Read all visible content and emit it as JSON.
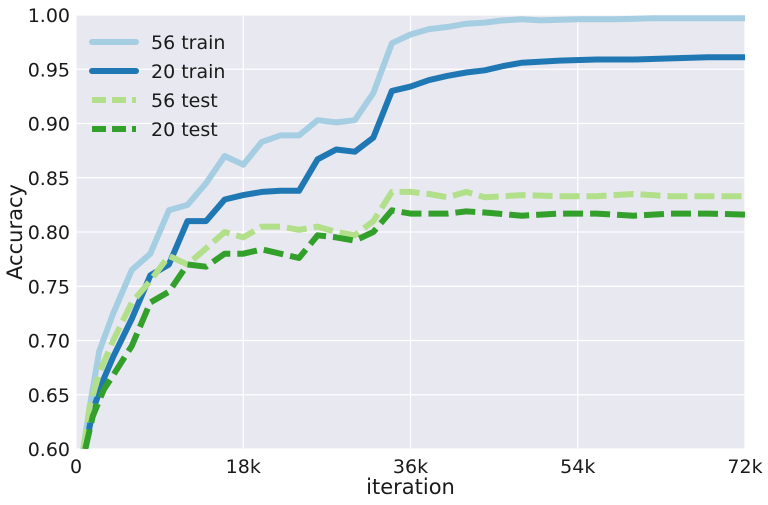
{
  "chart_data": {
    "type": "line",
    "title": "",
    "xlabel": "iteration",
    "ylabel": "Accuracy",
    "xlim": [
      0,
      72000
    ],
    "ylim": [
      0.6,
      1.0
    ],
    "grid": true,
    "legend_position": "top-left",
    "background": "#e8e8f0",
    "x_ticks": [
      {
        "value": 0,
        "label": "0"
      },
      {
        "value": 18000,
        "label": "18k"
      },
      {
        "value": 36000,
        "label": "36k"
      },
      {
        "value": 54000,
        "label": "54k"
      },
      {
        "value": 72000,
        "label": "72k"
      }
    ],
    "y_ticks": [
      {
        "value": 0.6,
        "label": "0.60"
      },
      {
        "value": 0.65,
        "label": "0.65"
      },
      {
        "value": 0.7,
        "label": "0.70"
      },
      {
        "value": 0.75,
        "label": "0.75"
      },
      {
        "value": 0.8,
        "label": "0.80"
      },
      {
        "value": 0.85,
        "label": "0.85"
      },
      {
        "value": 0.9,
        "label": "0.90"
      },
      {
        "value": 0.95,
        "label": "0.95"
      },
      {
        "value": 1.0,
        "label": "1.00"
      }
    ],
    "series": [
      {
        "name": "56 train",
        "color": "#a6cee3",
        "dash": "solid",
        "points": [
          [
            800,
            0.6
          ],
          [
            1500,
            0.64
          ],
          [
            2500,
            0.69
          ],
          [
            4000,
            0.725
          ],
          [
            6000,
            0.765
          ],
          [
            8000,
            0.78
          ],
          [
            10000,
            0.82
          ],
          [
            12000,
            0.825
          ],
          [
            14000,
            0.845
          ],
          [
            16000,
            0.87
          ],
          [
            18000,
            0.862
          ],
          [
            20000,
            0.883
          ],
          [
            22000,
            0.889
          ],
          [
            24000,
            0.889
          ],
          [
            26000,
            0.903
          ],
          [
            28000,
            0.901
          ],
          [
            30000,
            0.903
          ],
          [
            32000,
            0.928
          ],
          [
            34000,
            0.974
          ],
          [
            36000,
            0.982
          ],
          [
            38000,
            0.987
          ],
          [
            40000,
            0.989
          ],
          [
            42000,
            0.992
          ],
          [
            44000,
            0.993
          ],
          [
            46000,
            0.995
          ],
          [
            48000,
            0.996
          ],
          [
            50000,
            0.995
          ],
          [
            54000,
            0.996
          ],
          [
            58000,
            0.996
          ],
          [
            62000,
            0.997
          ],
          [
            66000,
            0.997
          ],
          [
            72000,
            0.997
          ]
        ]
      },
      {
        "name": "20 train",
        "color": "#1f78b4",
        "dash": "solid",
        "points": [
          [
            1000,
            0.6
          ],
          [
            1800,
            0.635
          ],
          [
            3000,
            0.665
          ],
          [
            4000,
            0.685
          ],
          [
            6000,
            0.72
          ],
          [
            8000,
            0.76
          ],
          [
            10000,
            0.77
          ],
          [
            12000,
            0.81
          ],
          [
            14000,
            0.81
          ],
          [
            16000,
            0.83
          ],
          [
            18000,
            0.834
          ],
          [
            20000,
            0.837
          ],
          [
            22000,
            0.838
          ],
          [
            24000,
            0.838
          ],
          [
            26000,
            0.867
          ],
          [
            28000,
            0.876
          ],
          [
            30000,
            0.874
          ],
          [
            32000,
            0.887
          ],
          [
            34000,
            0.93
          ],
          [
            36000,
            0.934
          ],
          [
            38000,
            0.94
          ],
          [
            40000,
            0.944
          ],
          [
            42000,
            0.947
          ],
          [
            44000,
            0.949
          ],
          [
            46000,
            0.953
          ],
          [
            48000,
            0.956
          ],
          [
            52000,
            0.958
          ],
          [
            56000,
            0.959
          ],
          [
            60000,
            0.959
          ],
          [
            64000,
            0.96
          ],
          [
            68000,
            0.961
          ],
          [
            72000,
            0.961
          ]
        ]
      },
      {
        "name": "56 test",
        "color": "#b2df8a",
        "dash": "dashed",
        "points": [
          [
            800,
            0.6
          ],
          [
            1500,
            0.64
          ],
          [
            2500,
            0.67
          ],
          [
            4000,
            0.7
          ],
          [
            6000,
            0.735
          ],
          [
            8000,
            0.755
          ],
          [
            10000,
            0.778
          ],
          [
            12000,
            0.77
          ],
          [
            14000,
            0.785
          ],
          [
            16000,
            0.8
          ],
          [
            18000,
            0.795
          ],
          [
            20000,
            0.805
          ],
          [
            22000,
            0.805
          ],
          [
            24000,
            0.802
          ],
          [
            26000,
            0.805
          ],
          [
            28000,
            0.8
          ],
          [
            30000,
            0.797
          ],
          [
            32000,
            0.81
          ],
          [
            34000,
            0.837
          ],
          [
            36000,
            0.837
          ],
          [
            38000,
            0.835
          ],
          [
            40000,
            0.832
          ],
          [
            42000,
            0.837
          ],
          [
            44000,
            0.832
          ],
          [
            48000,
            0.834
          ],
          [
            52000,
            0.833
          ],
          [
            56000,
            0.833
          ],
          [
            60000,
            0.835
          ],
          [
            64000,
            0.833
          ],
          [
            68000,
            0.833
          ],
          [
            72000,
            0.833
          ]
        ]
      },
      {
        "name": "20 test",
        "color": "#33a02c",
        "dash": "dashed",
        "points": [
          [
            1000,
            0.6
          ],
          [
            1800,
            0.63
          ],
          [
            3000,
            0.655
          ],
          [
            4000,
            0.668
          ],
          [
            6000,
            0.695
          ],
          [
            8000,
            0.735
          ],
          [
            10000,
            0.745
          ],
          [
            12000,
            0.77
          ],
          [
            14000,
            0.768
          ],
          [
            16000,
            0.78
          ],
          [
            18000,
            0.78
          ],
          [
            20000,
            0.784
          ],
          [
            22000,
            0.78
          ],
          [
            24000,
            0.776
          ],
          [
            26000,
            0.797
          ],
          [
            28000,
            0.795
          ],
          [
            30000,
            0.792
          ],
          [
            32000,
            0.8
          ],
          [
            34000,
            0.82
          ],
          [
            36000,
            0.817
          ],
          [
            38000,
            0.817
          ],
          [
            40000,
            0.817
          ],
          [
            42000,
            0.819
          ],
          [
            44000,
            0.818
          ],
          [
            48000,
            0.815
          ],
          [
            52000,
            0.817
          ],
          [
            56000,
            0.817
          ],
          [
            60000,
            0.815
          ],
          [
            64000,
            0.817
          ],
          [
            68000,
            0.817
          ],
          [
            72000,
            0.816
          ]
        ]
      }
    ]
  }
}
